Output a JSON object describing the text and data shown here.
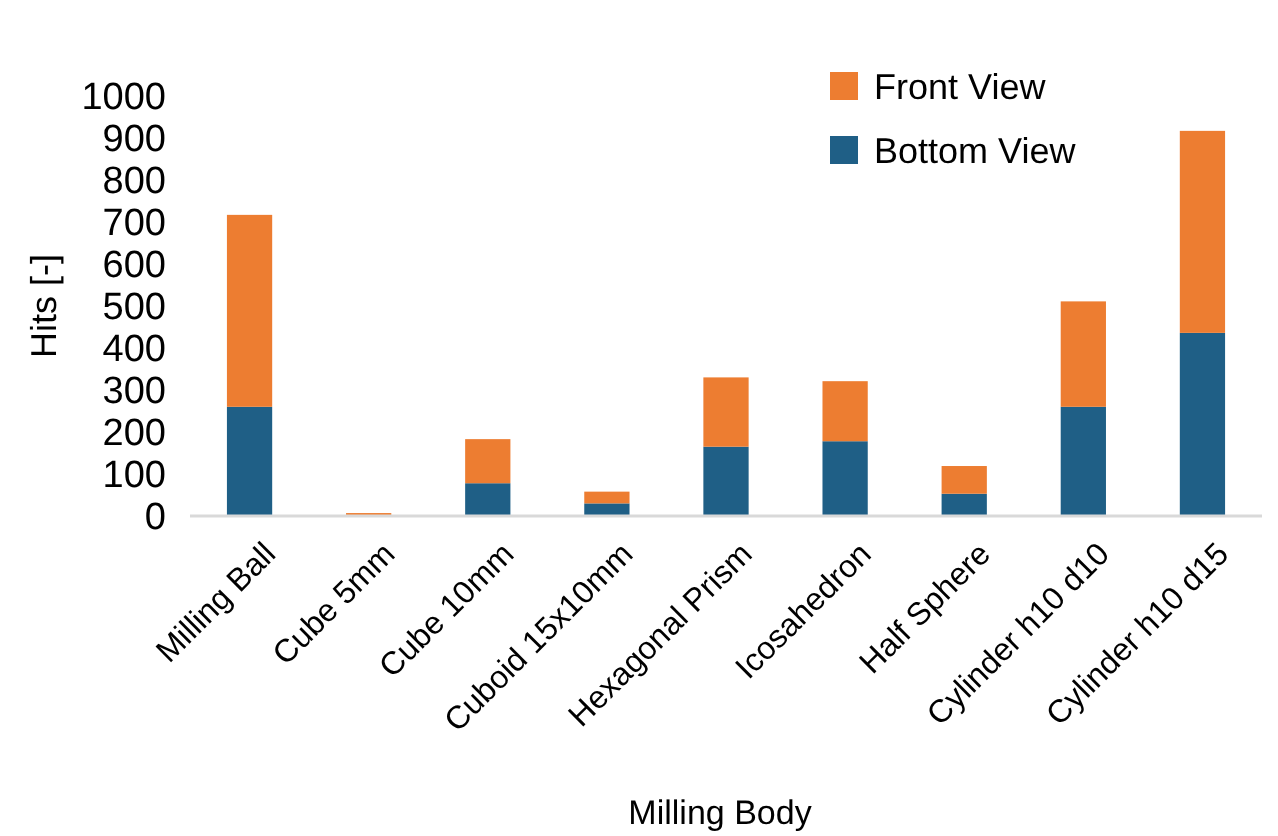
{
  "chart_data": {
    "type": "bar",
    "stacked": true,
    "xlabel": "Milling Body",
    "ylabel": "Hits [-]",
    "categories": [
      "Milling Ball",
      "Cube 5mm",
      "Cube 10mm",
      "Cuboid 15x10mm",
      "Hexagonal Prism",
      "Icosahedron",
      "Half Sphere",
      "Cylinder h10 d10",
      "Cylinder h10 d15"
    ],
    "series": [
      {
        "name": "Bottom View",
        "color": "#1f5f86",
        "values": [
          260,
          2,
          78,
          30,
          165,
          178,
          53,
          260,
          436
        ]
      },
      {
        "name": "Front View",
        "color": "#ed7d31",
        "values": [
          457,
          5,
          105,
          28,
          165,
          143,
          66,
          251,
          481
        ]
      }
    ],
    "ylim": [
      0,
      1000
    ],
    "yticks": [
      0,
      100,
      200,
      300,
      400,
      500,
      600,
      700,
      800,
      900,
      1000
    ],
    "grid": false,
    "legend": "top right"
  }
}
